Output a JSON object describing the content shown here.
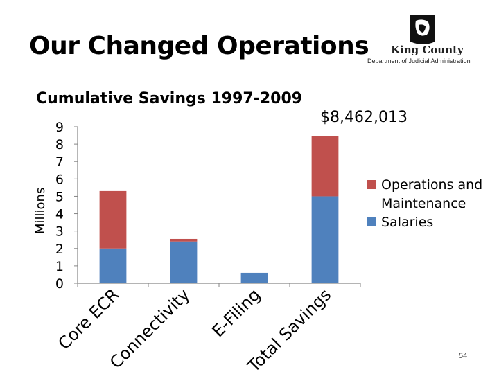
{
  "slide": {
    "title": "Our Changed Operations",
    "logo_name": "King County",
    "logo_dept": "Department of Judicial Administration",
    "page_number": "54"
  },
  "chart_data": {
    "type": "bar",
    "stacked": true,
    "title": "Cumulative Savings 1997-2009",
    "ylabel": "Millions",
    "xlabel": "",
    "ylim": [
      0,
      9
    ],
    "yticks": [
      0,
      1,
      2,
      3,
      4,
      5,
      6,
      7,
      8,
      9
    ],
    "categories": [
      "Core ECR",
      "Connectivity",
      "E-Filing",
      "Total Savings"
    ],
    "series": [
      {
        "name": "Salaries",
        "color": "#4f81bd",
        "values": [
          2.0,
          2.4,
          0.6,
          5.0
        ]
      },
      {
        "name": "Operations and Maintenance",
        "color": "#c0504d",
        "values": [
          3.3,
          0.15,
          0.0,
          3.46
        ]
      }
    ],
    "annotation": "$8,462,013",
    "legend_placement": "right",
    "grid": false
  }
}
